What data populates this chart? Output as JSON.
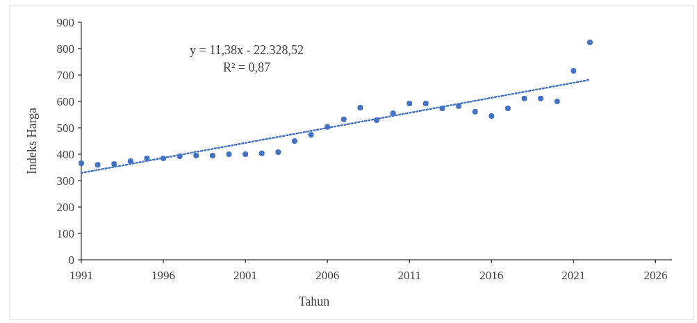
{
  "chart_data": {
    "type": "scatter",
    "xlabel": "Tahun",
    "ylabel": "Indeks Harga",
    "annotations": [
      "y = 11,38x - 22.328,52",
      "R² = 0,87"
    ],
    "series": [
      {
        "color": "#4472c4",
        "marker": "circle",
        "x": [
          1991,
          1992,
          1993,
          1994,
          1995,
          1996,
          1997,
          1998,
          1999,
          2000,
          2001,
          2002,
          2003,
          2004,
          2005,
          2006,
          2007,
          2008,
          2009,
          2010,
          2011,
          2012,
          2013,
          2014,
          2015,
          2016,
          2017,
          2018,
          2019,
          2020,
          2021,
          2022
        ],
        "values": [
          366,
          360,
          363,
          374,
          384,
          384,
          392,
          395,
          395,
          400,
          400,
          403,
          408,
          450,
          474,
          503,
          532,
          576,
          529,
          555,
          592,
          592,
          574,
          582,
          561,
          545,
          574,
          611,
          611,
          600,
          716,
          824
        ]
      },
      {
        "type": "line",
        "color": "#4472c4",
        "line_style": "dotted",
        "x": [
          1991,
          2022
        ],
        "values": [
          329,
          682
        ]
      }
    ],
    "xlim": [
      1991,
      2027
    ],
    "xticks": [
      1991,
      1996,
      2001,
      2006,
      2011,
      2016,
      2021,
      2026
    ],
    "ylim": [
      0,
      900
    ],
    "yticks": [
      0,
      100,
      200,
      300,
      400,
      500,
      600,
      700,
      800,
      900
    ],
    "grid": false
  }
}
